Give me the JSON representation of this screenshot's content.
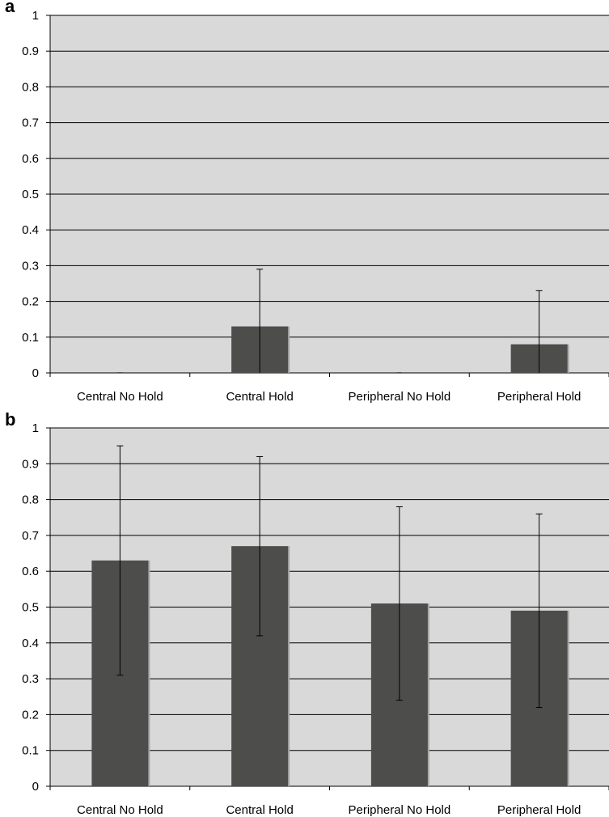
{
  "chart_data": [
    {
      "type": "bar",
      "panel_label": "a",
      "categories": [
        "Central No Hold",
        "Central Hold",
        "Peripheral No Hold",
        "Peripheral Hold"
      ],
      "values": [
        0,
        0.13,
        0,
        0.08
      ],
      "error_upper": [
        null,
        0.29,
        null,
        0.23
      ],
      "error_lower": [
        null,
        0,
        null,
        0
      ],
      "ylim": [
        0,
        1
      ],
      "yticks": [
        "0",
        "0.1",
        "0.2",
        "0.3",
        "0.4",
        "0.5",
        "0.6",
        "0.7",
        "0.8",
        "0.9",
        "1"
      ],
      "grid": true,
      "legend": false,
      "title": "",
      "xlabel": "",
      "ylabel": ""
    },
    {
      "type": "bar",
      "panel_label": "b",
      "categories": [
        "Central No Hold",
        "Central Hold",
        "Peripheral No Hold",
        "Peripheral Hold"
      ],
      "values": [
        0.63,
        0.67,
        0.51,
        0.49
      ],
      "error_upper": [
        0.95,
        0.92,
        0.78,
        0.76
      ],
      "error_lower": [
        0.31,
        0.42,
        0.24,
        0.22
      ],
      "ylim": [
        0,
        1
      ],
      "yticks": [
        "0",
        "0.1",
        "0.2",
        "0.3",
        "0.4",
        "0.5",
        "0.6",
        "0.7",
        "0.8",
        "0.9",
        "1"
      ],
      "grid": true,
      "legend": false,
      "title": "",
      "xlabel": "",
      "ylabel": ""
    }
  ],
  "colors": {
    "plot_background": "#d9d9d9",
    "bar_fill": "#4d4d4b",
    "bar_shadow": "#a6a6a6",
    "gridline": "#000000",
    "error_bar": "#000000"
  }
}
